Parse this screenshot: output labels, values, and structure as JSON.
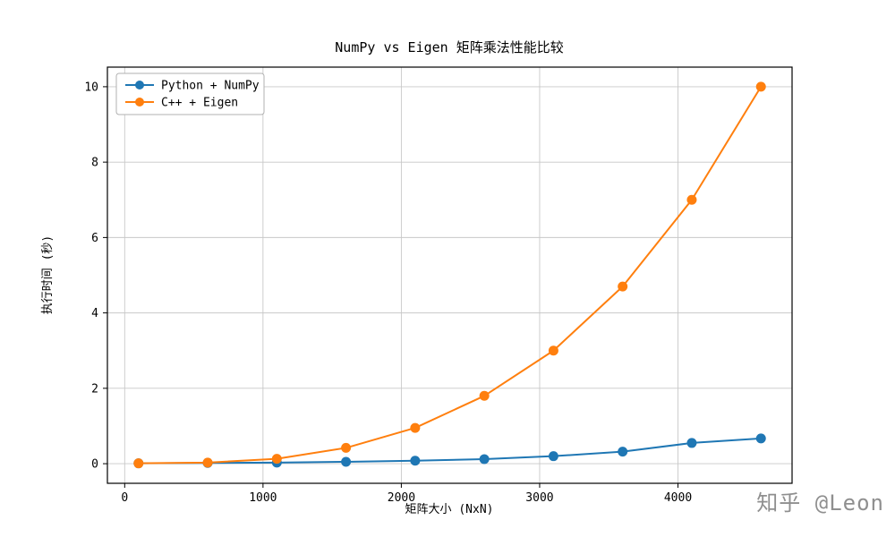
{
  "title": "NumPy vs Eigen 矩阵乘法性能比较",
  "watermark": "知乎 @Leon",
  "chart_data": {
    "type": "line",
    "title": "NumPy vs Eigen 矩阵乘法性能比较",
    "xlabel": "矩阵大小 (NxN)",
    "ylabel": "执行时间 (秒)",
    "x": [
      100,
      600,
      1100,
      1600,
      2100,
      2600,
      3100,
      3600,
      4100,
      4600
    ],
    "series": [
      {
        "name": "Python + NumPy",
        "color": "#1f77b4",
        "values": [
          0.01,
          0.02,
          0.03,
          0.05,
          0.08,
          0.12,
          0.2,
          0.32,
          0.55,
          0.67
        ]
      },
      {
        "name": "C++ + Eigen",
        "color": "#ff7f0e",
        "values": [
          0.01,
          0.03,
          0.13,
          0.42,
          0.95,
          1.8,
          3.0,
          4.7,
          7.0,
          10.0
        ]
      }
    ],
    "xticks": [
      0,
      1000,
      2000,
      3000,
      4000
    ],
    "yticks": [
      0,
      2,
      4,
      6,
      8,
      10
    ],
    "xlim": [
      -125,
      4825
    ],
    "ylim": [
      -0.52,
      10.52
    ],
    "grid": true,
    "legend_position": "upper left",
    "grid_color": "#c8c8c8",
    "frame_color": "#000000"
  }
}
